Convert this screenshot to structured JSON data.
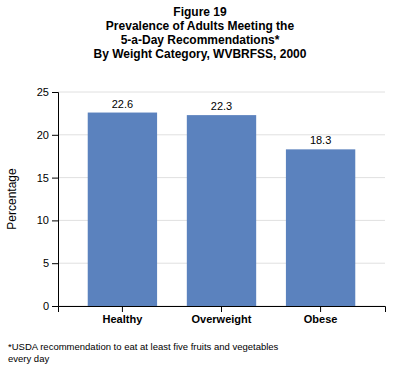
{
  "chart_data": {
    "type": "bar",
    "title": "Figure 19\nPrevalence of Adults Meeting the\n5-a-Day Recommendations*\nBy Weight Category, WVBRFSS, 2000",
    "categories": [
      "Healthy",
      "Overweight",
      "Obese"
    ],
    "values": [
      22.6,
      22.3,
      18.3
    ],
    "color": "#5b82be",
    "ylabel": "Percentage",
    "ylim": [
      0,
      25
    ],
    "yticks": [
      0,
      5,
      10,
      15,
      20,
      25
    ],
    "grid": true,
    "data_labels": true,
    "footnote": "*USDA recommendation to eat at least five fruits and vegetables\nevery day"
  }
}
